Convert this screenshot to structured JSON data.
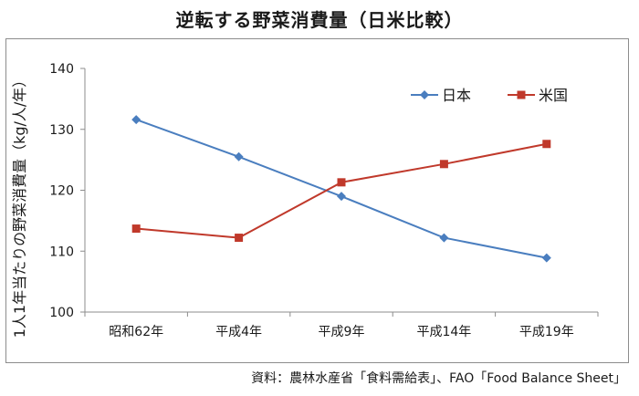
{
  "chart_data": {
    "type": "line",
    "title": "逆転する野菜消費量（日米比較）",
    "ylabel": "1人1年当たりの野菜消費量（kg/人/年）",
    "xlabel": "",
    "categories": [
      "昭和62年",
      "平成4年",
      "平成9年",
      "平成14年",
      "平成19年"
    ],
    "ylim": [
      100,
      140
    ],
    "yticks": [
      100,
      110,
      120,
      130,
      140
    ],
    "grid": false,
    "legend": "top-right",
    "series": [
      {
        "name": "日本",
        "color": "#4a7ebf",
        "marker": "diamond",
        "values": [
          131.6,
          125.5,
          119.0,
          112.2,
          108.9
        ]
      },
      {
        "name": "米国",
        "color": "#c0392b",
        "marker": "square",
        "values": [
          113.7,
          112.2,
          121.3,
          124.3,
          127.6
        ]
      }
    ],
    "source": "資料：農林水産省「食料需給表」、FAO「Food Balance Sheet」"
  }
}
